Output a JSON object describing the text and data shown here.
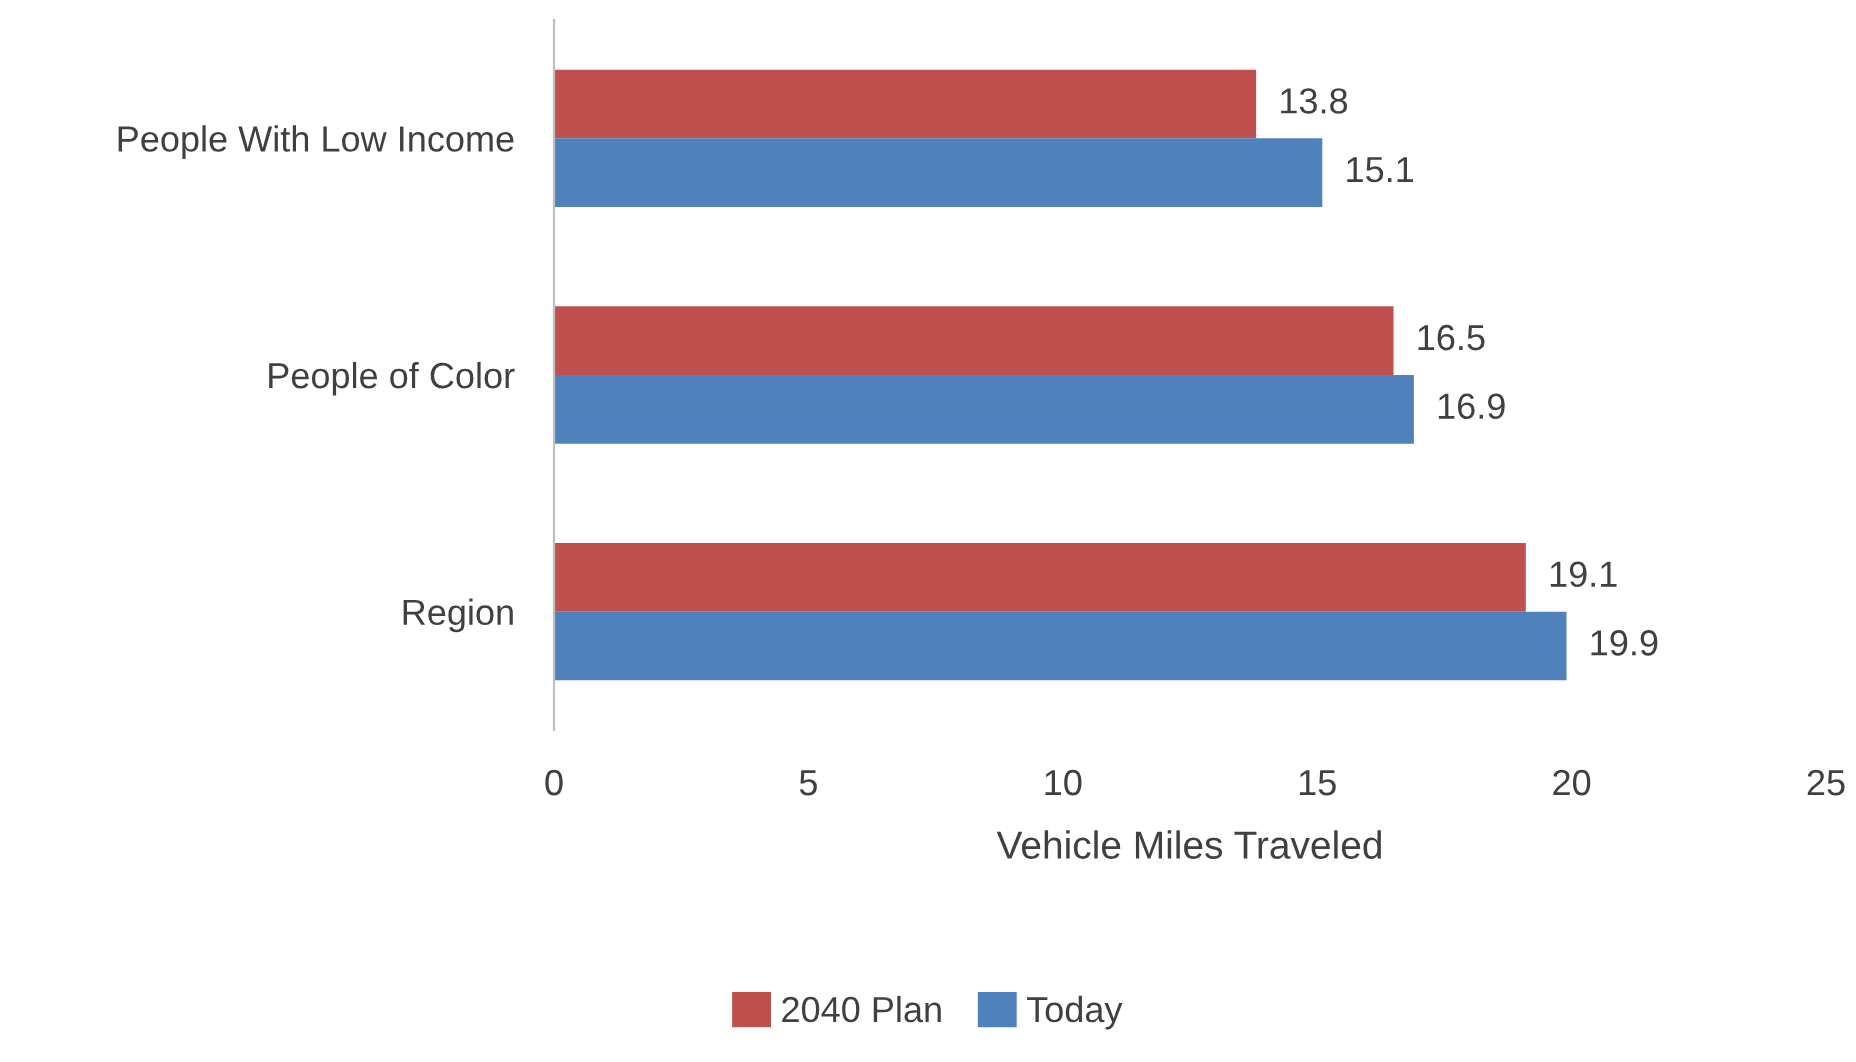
{
  "chart_data": {
    "type": "bar",
    "orientation": "horizontal",
    "xlabel": "Vehicle Miles Traveled",
    "categories": [
      "People With Low Income",
      "People of Color",
      "Region"
    ],
    "series": [
      {
        "name": "2040 Plan",
        "color": "#c0504d",
        "values": [
          13.8,
          16.5,
          19.1
        ]
      },
      {
        "name": "Today",
        "color": "#4f81bd",
        "values": [
          15.1,
          16.9,
          19.9
        ]
      }
    ],
    "xlim": [
      0,
      25
    ],
    "xticks": [
      0,
      5,
      10,
      15,
      20,
      25
    ],
    "grid": false,
    "legend": "bottom",
    "data_labels": true
  }
}
